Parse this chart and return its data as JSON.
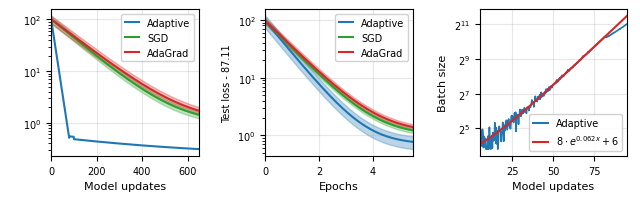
{
  "plot1": {
    "xlabel": "Model updates",
    "xlim": [
      0,
      650
    ],
    "xticks": [
      0,
      200,
      400,
      600
    ],
    "colors": {
      "adaptive": "#1f77b4",
      "sgd": "#2ca02c",
      "adagrad": "#d62728"
    },
    "legend": [
      "Adaptive",
      "SGD",
      "AdaGrad"
    ]
  },
  "plot2": {
    "xlabel": "Epochs",
    "ylabel": "Test loss - 87.11",
    "xlim": [
      0,
      5.5
    ],
    "xticks": [
      0,
      2,
      4
    ],
    "colors": {
      "adaptive": "#1f77b4",
      "sgd": "#2ca02c",
      "adagrad": "#d62728"
    },
    "legend": [
      "Adaptive",
      "SGD",
      "AdaGrad"
    ]
  },
  "plot3": {
    "xlabel": "Model updates",
    "ylabel": "Batch size",
    "xlim": [
      5,
      95
    ],
    "xticks": [
      25,
      50,
      75
    ],
    "colors": {
      "adaptive": "#1f77b4",
      "fit": "#d62728"
    },
    "yticks": [
      32,
      128,
      512,
      2048
    ],
    "ytick_labels": [
      "$2^{5}$",
      "$2^{7}$",
      "$2^{9}$",
      "$2^{11}$"
    ],
    "legend": [
      "Adaptive",
      "$8 \\cdot e^{0.062x} + 6$"
    ]
  }
}
